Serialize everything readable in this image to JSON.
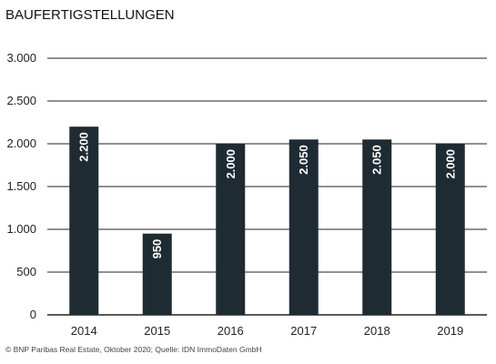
{
  "chart_data": {
    "type": "bar",
    "title": "BAUFERTIGSTELLUNGEN",
    "categories": [
      "2014",
      "2015",
      "2016",
      "2017",
      "2018",
      "2019"
    ],
    "values": [
      2200,
      950,
      2000,
      2050,
      2050,
      2000
    ],
    "value_labels": [
      "2.200",
      "950",
      "2.000",
      "2.050",
      "2.050",
      "2.000"
    ],
    "yticks": [
      0,
      500,
      1000,
      1500,
      2000,
      2500,
      3000
    ],
    "ytick_labels": [
      "0",
      "500",
      "1.000",
      "1.500",
      "2.000",
      "2.500",
      "3.000"
    ],
    "ylim": [
      0,
      3000
    ],
    "grid": true,
    "legend": "none",
    "bar_color": "#1e2b33",
    "grid_color": "#222222"
  },
  "source": "© BNP Paribas Real Estate, Oktober 2020; Quelle: IDN ImmoDaten GmbH"
}
